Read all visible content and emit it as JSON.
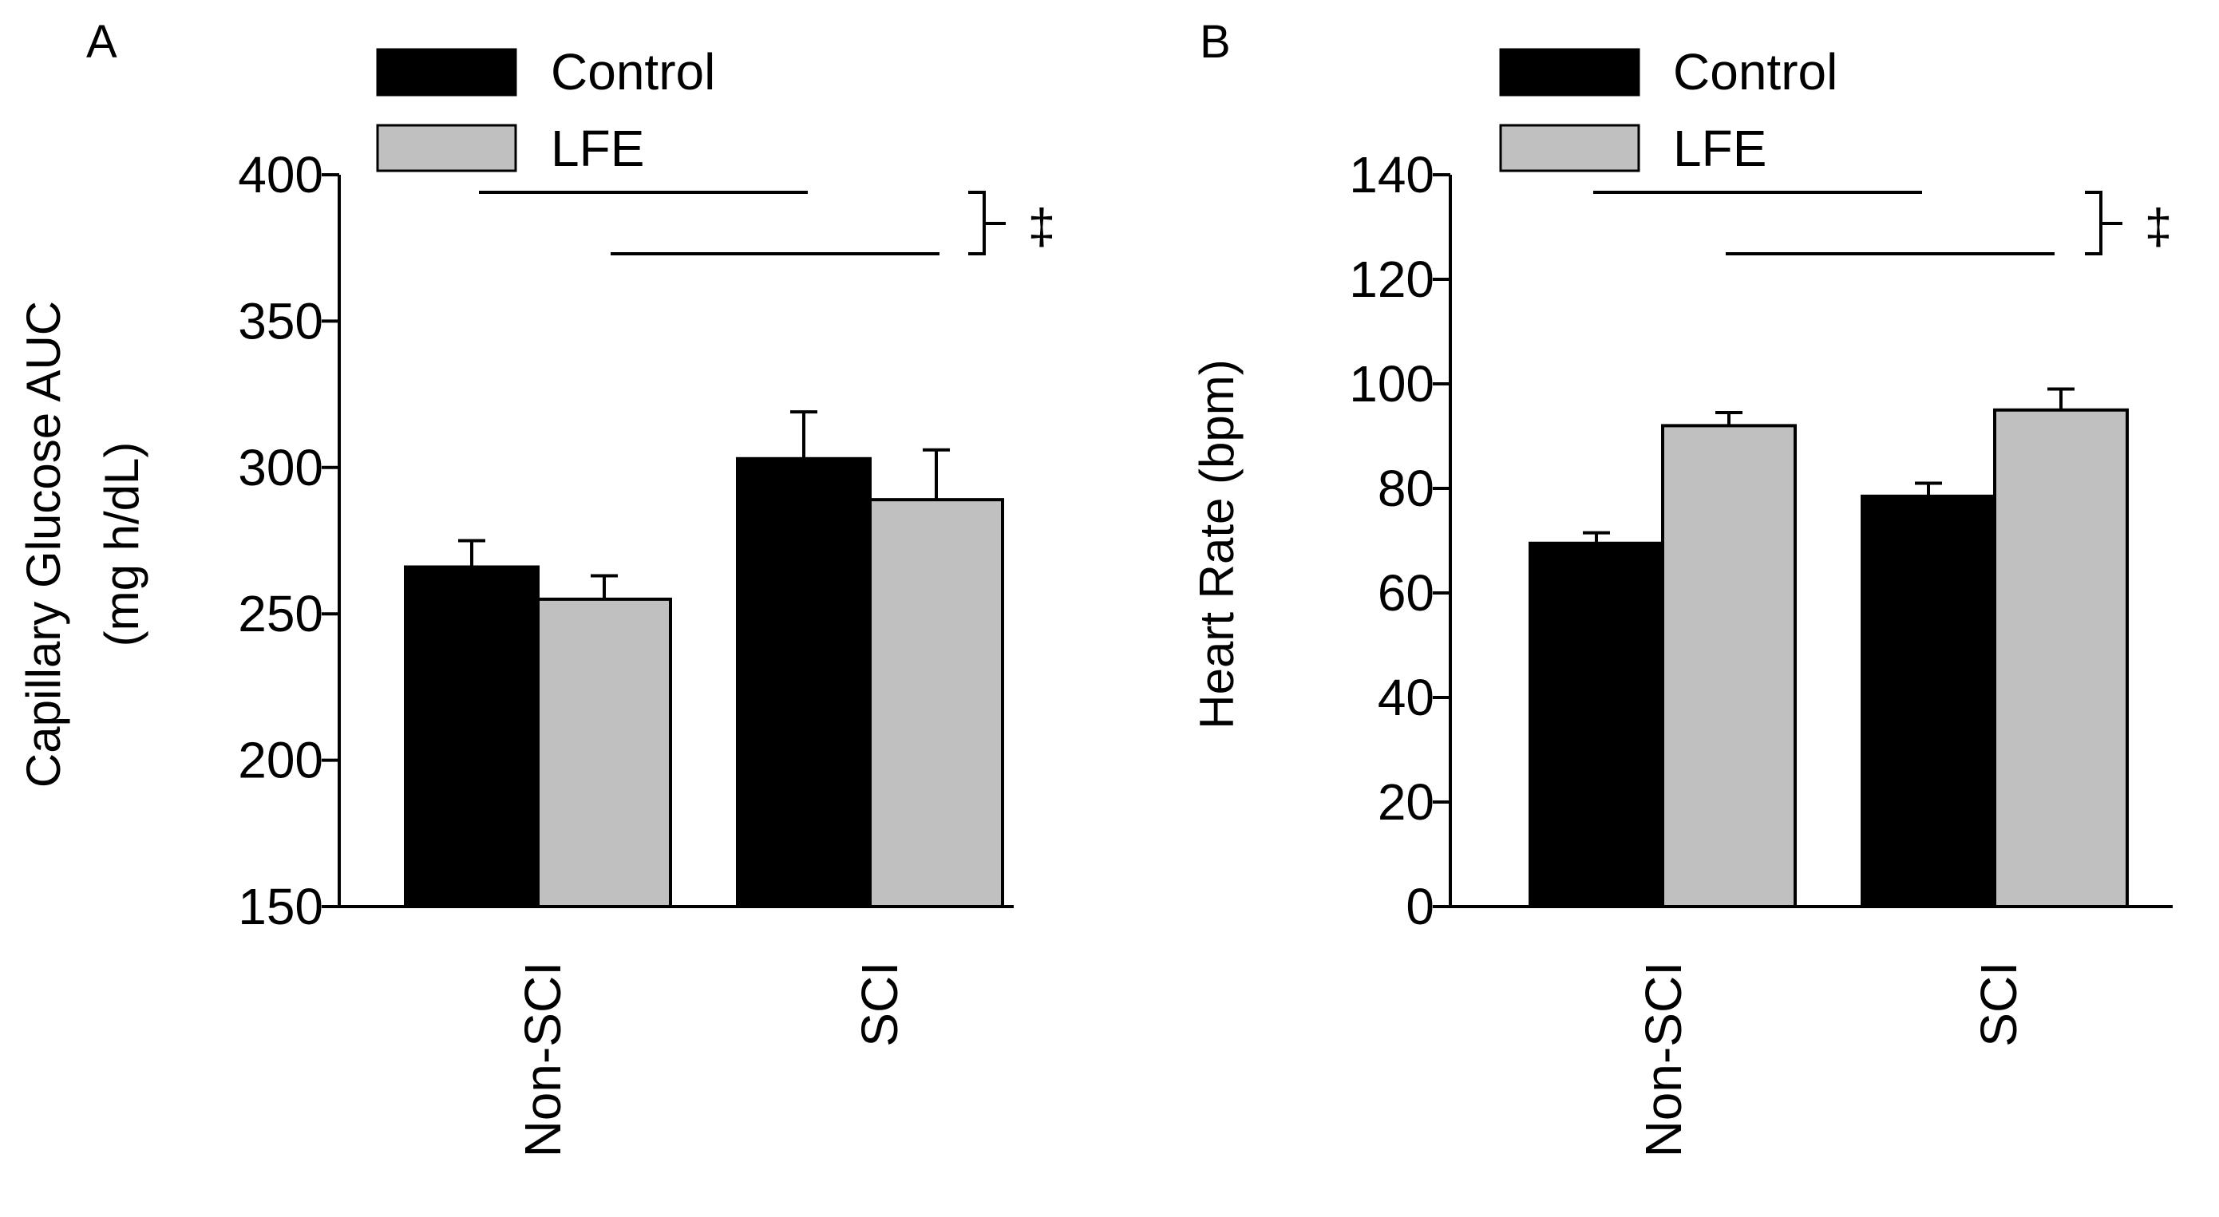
{
  "chart_data": [
    {
      "panel_label": "A",
      "type": "bar",
      "ylabel_line1": "Capillary Glucose AUC",
      "ylabel_line2": "(mg h/dL)",
      "xlabel": "",
      "categories": [
        "Non-SCI",
        "SCI"
      ],
      "ylim": [
        150,
        400
      ],
      "yticks": [
        150,
        200,
        250,
        300,
        350,
        400
      ],
      "series": [
        {
          "name": "Control",
          "color": "#000000",
          "values": [
            266,
            303
          ],
          "errors": [
            9,
            16
          ]
        },
        {
          "name": "LFE",
          "color": "#c0c0c0",
          "values": [
            255,
            289
          ],
          "errors": [
            8,
            17
          ]
        }
      ],
      "legend": {
        "position": "top-left",
        "entries": [
          "Control",
          "LFE"
        ]
      },
      "annotation": {
        "symbol": "‡",
        "meaning": "LFE vs Control comparison bracket"
      }
    },
    {
      "panel_label": "B",
      "type": "bar",
      "ylabel_line1": "Heart Rate (bpm)",
      "ylabel_line2": "",
      "xlabel": "",
      "categories": [
        "Non-SCI",
        "SCI"
      ],
      "ylim": [
        0,
        140
      ],
      "yticks": [
        0,
        20,
        40,
        60,
        80,
        100,
        120,
        140
      ],
      "series": [
        {
          "name": "Control",
          "color": "#000000",
          "values": [
            69.5,
            78.5
          ],
          "errors": [
            2,
            2.5
          ]
        },
        {
          "name": "LFE",
          "color": "#c0c0c0",
          "values": [
            92,
            95
          ],
          "errors": [
            2.5,
            4
          ]
        }
      ],
      "legend": {
        "position": "top-left",
        "entries": [
          "Control",
          "LFE"
        ]
      },
      "annotation": {
        "symbol": "‡",
        "meaning": "LFE vs Control comparison bracket"
      }
    }
  ]
}
